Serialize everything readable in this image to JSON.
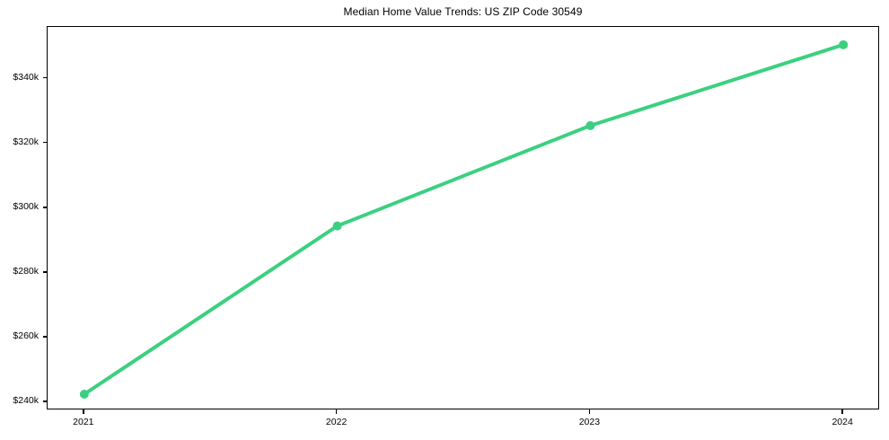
{
  "chart_title": "Median Home Value Trends: US ZIP Code 30549",
  "colors": {
    "line": "#3bd080",
    "axis": "#000000",
    "text": "#000000",
    "background": "#ffffff"
  },
  "chart_data": {
    "type": "line",
    "title": "Median Home Value Trends: US ZIP Code 30549",
    "x": [
      2021,
      2022,
      2023,
      2024
    ],
    "x_labels": [
      "2021",
      "2022",
      "2023",
      "2024"
    ],
    "series": [
      {
        "name": "Median Home Value",
        "values": [
          242500,
          294500,
          325500,
          350500
        ]
      }
    ],
    "xlim": [
      2020.855,
      2024.145
    ],
    "ylim": [
      237500,
      356000
    ],
    "yticks": [
      {
        "value": 240000,
        "label": "$240k"
      },
      {
        "value": 260000,
        "label": "$260k"
      },
      {
        "value": 280000,
        "label": "$280k"
      },
      {
        "value": 300000,
        "label": "$300k"
      },
      {
        "value": 320000,
        "label": "$320k"
      },
      {
        "value": 340000,
        "label": "$340k"
      }
    ],
    "grid": false,
    "legend_position": "none",
    "marker": "circle",
    "line_width": 4,
    "marker_radius": 5
  }
}
